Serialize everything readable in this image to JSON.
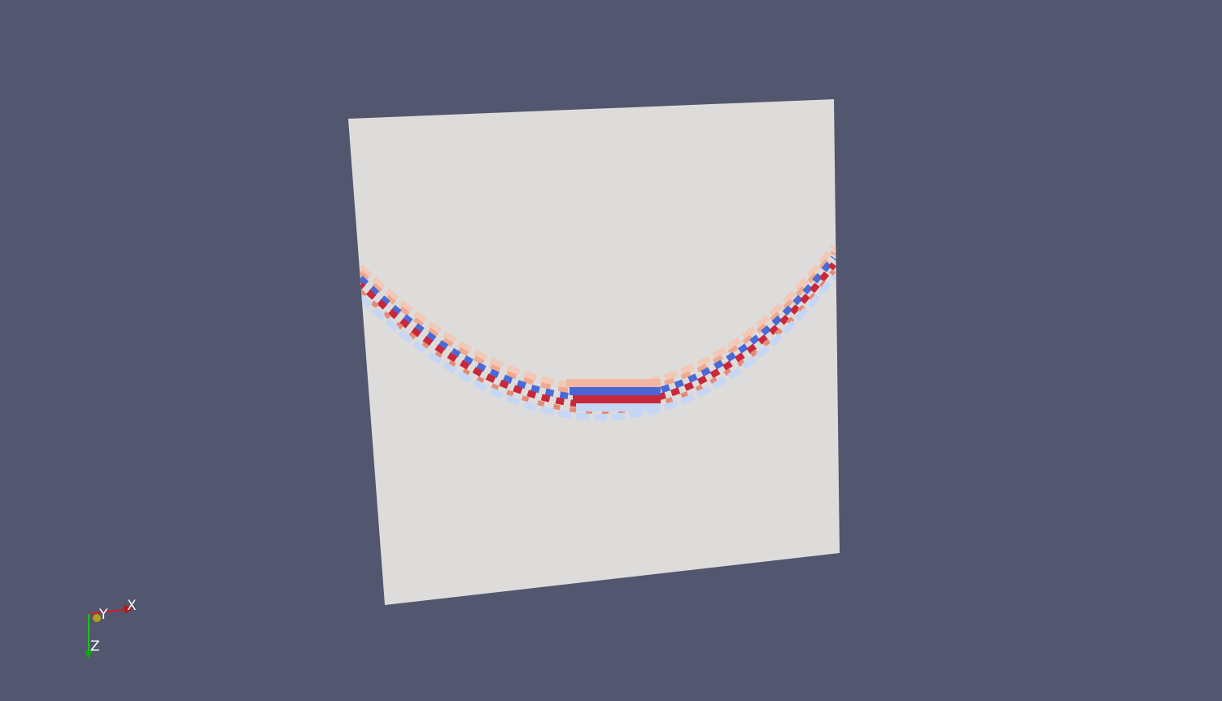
{
  "axes": {
    "x": "X",
    "y": "Y",
    "z": "Z"
  }
}
